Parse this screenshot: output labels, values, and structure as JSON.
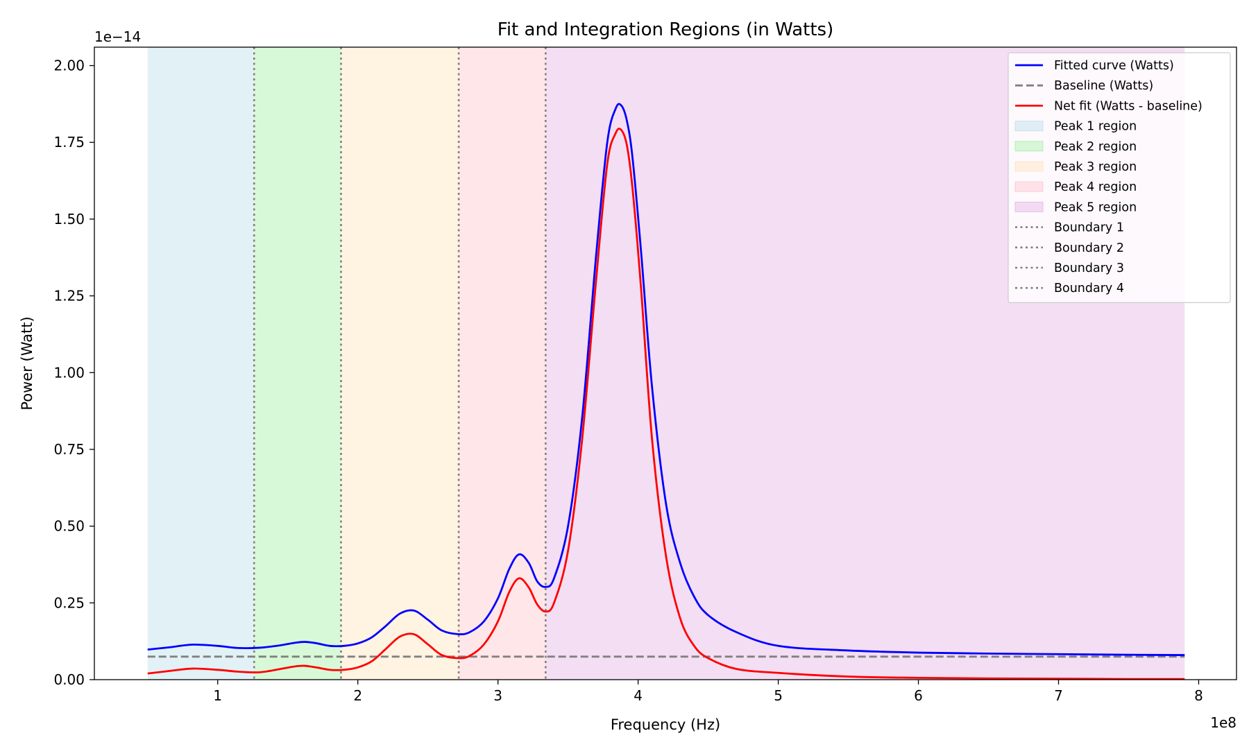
{
  "chart_data": {
    "type": "line",
    "title": "Fit and Integration Regions (in Watts)",
    "xlabel": "Frequency (Hz)",
    "ylabel": "Power (Watt)",
    "x_offset_label": "1e8",
    "y_offset_label": "1e−14",
    "x_scale": 100000000.0,
    "y_scale": 1e-14,
    "xlim": [
      0.12,
      8.27
    ],
    "ylim": [
      0,
      2.06
    ],
    "x_ticks": [
      1,
      2,
      3,
      4,
      5,
      6,
      7,
      8
    ],
    "x_tick_labels": [
      "1",
      "2",
      "3",
      "4",
      "5",
      "6",
      "7",
      "8"
    ],
    "y_ticks": [
      0,
      0.25,
      0.5,
      0.75,
      1.0,
      1.25,
      1.5,
      1.75,
      2.0
    ],
    "y_tick_labels": [
      "0.00",
      "0.25",
      "0.50",
      "0.75",
      "1.00",
      "1.25",
      "1.50",
      "1.75",
      "2.00"
    ],
    "grid": false,
    "legend_position": "top-right",
    "baseline_value": 0.075,
    "regions": [
      {
        "name": "Peak 1 region",
        "x_start": 0.5,
        "x_end": 1.26,
        "color": "#add8e6"
      },
      {
        "name": "Peak 2 region",
        "x_start": 1.26,
        "x_end": 1.88,
        "color": "#90ee90"
      },
      {
        "name": "Peak 3 region",
        "x_start": 1.88,
        "x_end": 2.72,
        "color": "#ffdead"
      },
      {
        "name": "Peak 4 region",
        "x_start": 2.72,
        "x_end": 3.34,
        "color": "#ffb6c1"
      },
      {
        "name": "Peak 5 region",
        "x_start": 3.34,
        "x_end": 7.9,
        "color": "#dda0dd"
      }
    ],
    "boundaries": [
      {
        "name": "Boundary 1",
        "x": 1.26
      },
      {
        "name": "Boundary 2",
        "x": 1.88
      },
      {
        "name": "Boundary 3",
        "x": 2.72
      },
      {
        "name": "Boundary 4",
        "x": 3.34
      }
    ],
    "series": [
      {
        "name": "Fitted curve (Watts)",
        "color": "#0000ff",
        "style": "solid",
        "x": [
          0.5,
          0.65,
          0.82,
          1.0,
          1.15,
          1.3,
          1.45,
          1.55,
          1.62,
          1.7,
          1.8,
          1.9,
          2.0,
          2.1,
          2.2,
          2.3,
          2.4,
          2.5,
          2.6,
          2.72,
          2.8,
          2.9,
          3.0,
          3.08,
          3.15,
          3.22,
          3.28,
          3.34,
          3.4,
          3.5,
          3.6,
          3.7,
          3.78,
          3.84,
          3.88,
          3.92,
          3.96,
          4.02,
          4.1,
          4.2,
          4.3,
          4.4,
          4.5,
          4.7,
          5.0,
          5.5,
          6.0,
          6.5,
          7.0,
          7.5,
          7.9
        ],
        "y": [
          0.098,
          0.105,
          0.114,
          0.11,
          0.103,
          0.104,
          0.112,
          0.12,
          0.123,
          0.119,
          0.11,
          0.11,
          0.118,
          0.138,
          0.175,
          0.215,
          0.225,
          0.195,
          0.16,
          0.148,
          0.155,
          0.19,
          0.265,
          0.36,
          0.408,
          0.38,
          0.32,
          0.302,
          0.33,
          0.5,
          0.85,
          1.38,
          1.75,
          1.86,
          1.87,
          1.82,
          1.7,
          1.4,
          0.95,
          0.57,
          0.38,
          0.27,
          0.21,
          0.155,
          0.11,
          0.095,
          0.088,
          0.085,
          0.083,
          0.081,
          0.08
        ]
      },
      {
        "name": "Baseline (Watts)",
        "color": "#808080",
        "style": "dashed",
        "x": [
          0.5,
          7.9
        ],
        "y": [
          0.075,
          0.075
        ]
      },
      {
        "name": "Net fit (Watts - baseline)",
        "color": "#ff0000",
        "style": "solid",
        "x": [
          0.5,
          0.65,
          0.82,
          1.0,
          1.15,
          1.3,
          1.45,
          1.55,
          1.62,
          1.7,
          1.8,
          1.9,
          2.0,
          2.1,
          2.2,
          2.3,
          2.4,
          2.5,
          2.6,
          2.72,
          2.8,
          2.9,
          3.0,
          3.08,
          3.15,
          3.22,
          3.28,
          3.34,
          3.4,
          3.5,
          3.6,
          3.7,
          3.78,
          3.84,
          3.88,
          3.92,
          3.96,
          4.02,
          4.1,
          4.2,
          4.3,
          4.4,
          4.5,
          4.7,
          5.0,
          5.5,
          6.0,
          6.5,
          7.0,
          7.5,
          7.9
        ],
        "y": [
          0.02,
          0.028,
          0.036,
          0.032,
          0.026,
          0.024,
          0.035,
          0.043,
          0.045,
          0.04,
          0.032,
          0.032,
          0.04,
          0.06,
          0.1,
          0.14,
          0.148,
          0.115,
          0.08,
          0.07,
          0.078,
          0.115,
          0.19,
          0.285,
          0.33,
          0.3,
          0.245,
          0.222,
          0.25,
          0.42,
          0.78,
          1.3,
          1.68,
          1.78,
          1.79,
          1.74,
          1.6,
          1.28,
          0.78,
          0.4,
          0.2,
          0.11,
          0.07,
          0.035,
          0.022,
          0.01,
          0.006,
          0.004,
          0.003,
          0.002,
          0.002
        ]
      }
    ]
  }
}
